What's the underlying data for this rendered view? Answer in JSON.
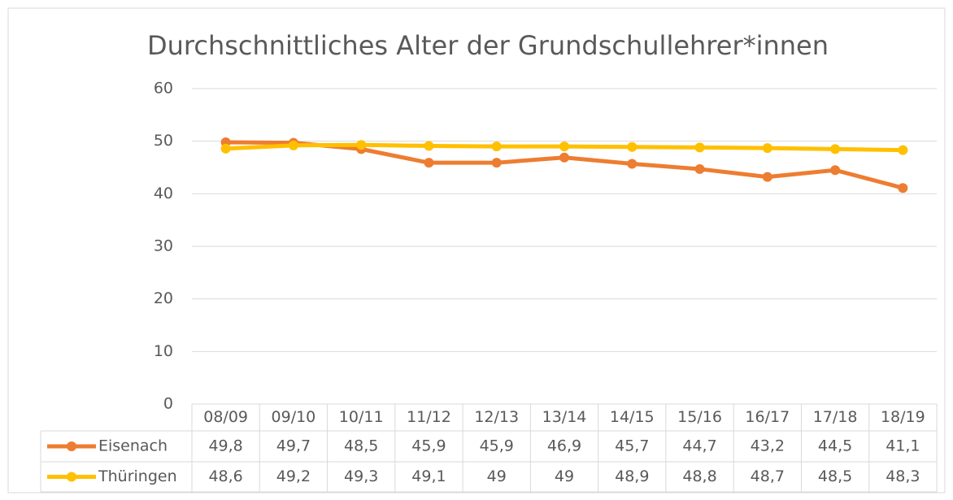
{
  "chart_data": {
    "type": "line",
    "title": "Durchschnittliches Alter der Grundschullehrer*innen",
    "categories": [
      "08/09",
      "09/10",
      "10/11",
      "11/12",
      "12/13",
      "13/14",
      "14/15",
      "15/16",
      "16/17",
      "17/18",
      "18/19"
    ],
    "series": [
      {
        "name": "Eisenach",
        "color": "#ED7D31",
        "values": [
          49.8,
          49.7,
          48.5,
          45.9,
          45.9,
          46.9,
          45.7,
          44.7,
          43.2,
          44.5,
          41.1
        ],
        "value_labels": [
          "49,8",
          "49,7",
          "48,5",
          "45,9",
          "45,9",
          "46,9",
          "45,7",
          "44,7",
          "43,2",
          "44,5",
          "41,1"
        ]
      },
      {
        "name": "Thüringen",
        "color": "#FFC000",
        "values": [
          48.6,
          49.2,
          49.3,
          49.1,
          49,
          49,
          48.9,
          48.8,
          48.7,
          48.5,
          48.3
        ],
        "value_labels": [
          "48,6",
          "49,2",
          "49,3",
          "49,1",
          "49",
          "49",
          "48,9",
          "48,8",
          "48,7",
          "48,5",
          "48,3"
        ]
      }
    ],
    "ylim": [
      0,
      60
    ],
    "yticks": [
      0,
      10,
      20,
      30,
      40,
      50,
      60
    ],
    "grid": true
  }
}
